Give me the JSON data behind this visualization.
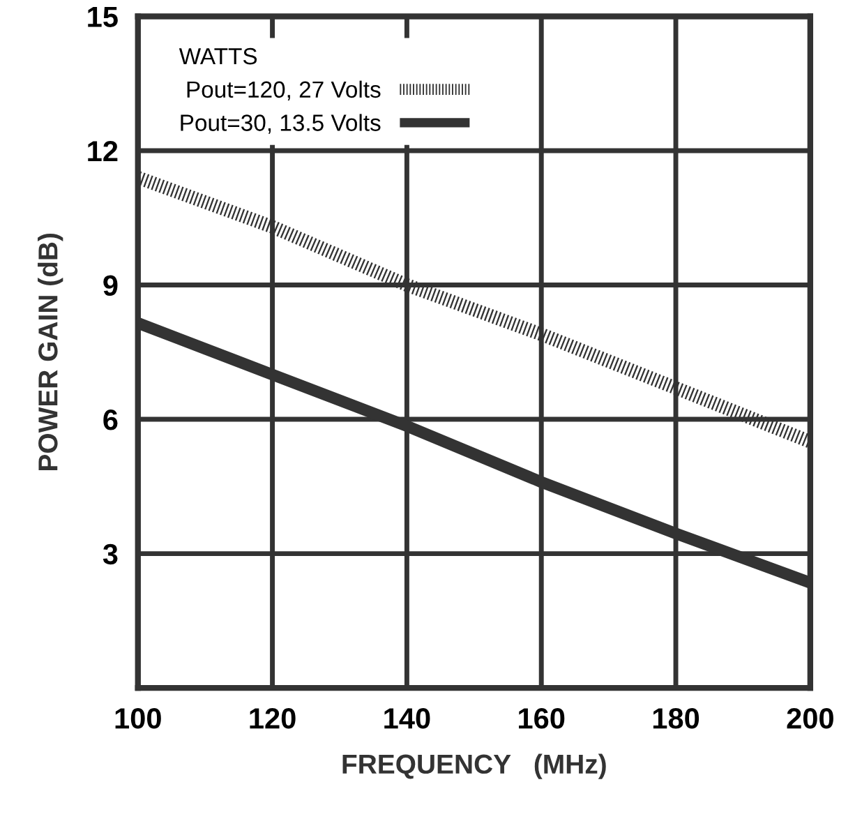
{
  "chart_data": {
    "type": "line",
    "xlabel": "FREQUENCY   (MHz)",
    "ylabel": "POWER GAIN (dB)",
    "legend_title": "WATTS",
    "x": [
      100,
      120,
      140,
      160,
      180,
      200
    ],
    "series": [
      {
        "name": "Pout=120, 27 Volts",
        "color": "#333333",
        "line_style": "dotted",
        "values": [
          11.4,
          10.3,
          9.0,
          7.9,
          6.7,
          5.5
        ]
      },
      {
        "name": "Pout=30, 13.5 Volts",
        "color": "#333333",
        "line_style": "solid",
        "values": [
          8.15,
          7.0,
          5.85,
          4.6,
          3.45,
          2.35
        ]
      }
    ],
    "xlim": [
      100,
      200
    ],
    "xticks": [
      100,
      120,
      140,
      160,
      180,
      200
    ],
    "ylim": [
      0,
      15
    ],
    "yticks": [
      3,
      6,
      9,
      12,
      15
    ],
    "grid": true,
    "legend": "top left",
    "marker": "none"
  }
}
